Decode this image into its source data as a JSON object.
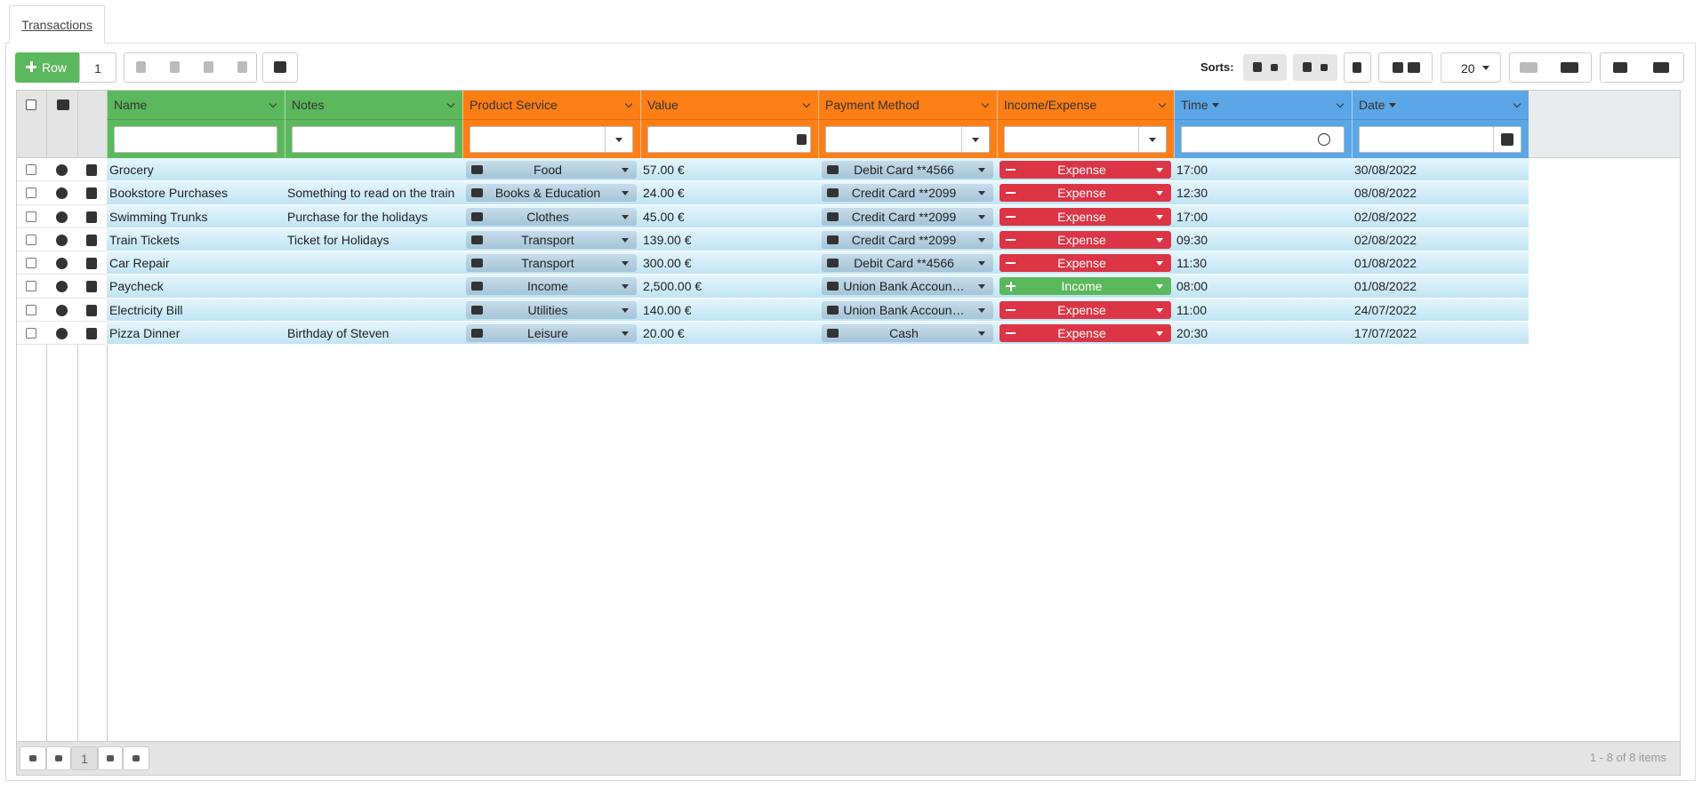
{
  "tab": "Transactions",
  "toolbar": {
    "add_button": "Row",
    "add_count": "1",
    "sorts_label": "Sorts:",
    "page_size": "20"
  },
  "table": {
    "columns": [
      "Name",
      "Notes",
      "Product Service",
      "Value",
      "Payment Method",
      "Income/Expense",
      "Time",
      "Date"
    ],
    "rows": [
      [
        "Grocery",
        "",
        "Food",
        "57.00 €",
        "Debit Card **4566",
        "Expense",
        "17:00",
        "30/08/2022"
      ],
      [
        "Bookstore Purchases",
        "Something to read on the train",
        "Books & Education",
        "24.00 €",
        "Credit Card **2099",
        "Expense",
        "12:30",
        "08/08/2022"
      ],
      [
        "Swimming Trunks",
        "Purchase for the holidays",
        "Clothes",
        "45.00 €",
        "Credit Card **2099",
        "Expense",
        "17:00",
        "02/08/2022"
      ],
      [
        "Train Tickets",
        "Ticket for Holidays",
        "Transport",
        "139.00 €",
        "Credit Card **2099",
        "Expense",
        "09:30",
        "02/08/2022"
      ],
      [
        "Car Repair",
        "",
        "Transport",
        "300.00 €",
        "Debit Card **4566",
        "Expense",
        "11:30",
        "01/08/2022"
      ],
      [
        "Paycheck",
        "",
        "Income",
        "2,500.00 €",
        "Union Bank Accoun…",
        "Income",
        "08:00",
        "01/08/2022"
      ],
      [
        "Electricity Bill",
        "",
        "Utilities",
        "140.00 €",
        "Union Bank Accoun…",
        "Expense",
        "11:00",
        "24/07/2022"
      ],
      [
        "Pizza Dinner",
        "Birthday of Steven",
        "Leisure",
        "20.00 €",
        "Cash",
        "Expense",
        "20:30",
        "17/07/2022"
      ]
    ]
  },
  "footer": {
    "page": "1",
    "summary": "1 - 8 of 8 items"
  }
}
